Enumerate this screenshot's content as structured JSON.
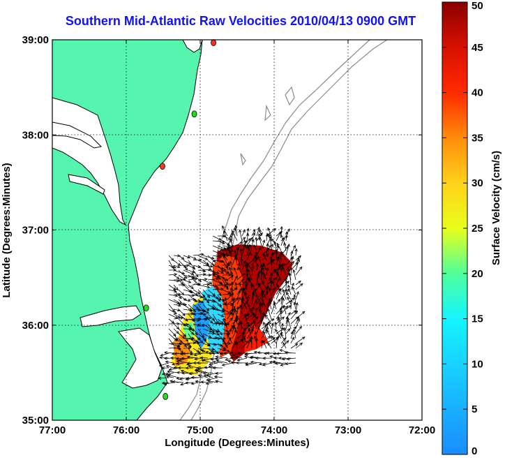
{
  "title": "Southern Mid-Atlantic Raw Velocities 2010/04/13 0900 GMT",
  "chart_data": {
    "type": "map",
    "xlabel": "Longitude (Degrees:Minutes)",
    "ylabel": "Latitude (Degrees:Minutes)",
    "x_ticks": [
      "77:00",
      "76:00",
      "75:00",
      "74:00",
      "73:00",
      "72:00"
    ],
    "x_tick_values": [
      -77,
      -76,
      -75,
      -74,
      -73,
      -72
    ],
    "y_ticks": [
      "39:00",
      "38:00",
      "37:00",
      "36:00",
      "35:00"
    ],
    "y_tick_values": [
      39,
      38,
      37,
      36,
      35
    ],
    "xlim": [
      -77,
      -72
    ],
    "ylim": [
      35,
      39
    ],
    "grid": true,
    "colorbar": {
      "label": "Surface Velocity (cm/s)",
      "range": [
        0,
        50
      ],
      "ticks": [
        "0",
        "5",
        "10",
        "15",
        "20",
        "25",
        "30",
        "35",
        "40",
        "45",
        "50"
      ],
      "tick_values": [
        0,
        5,
        10,
        15,
        20,
        25,
        30,
        35,
        40,
        45,
        50
      ]
    },
    "land_color": "#55f5b0",
    "coast_color": "#000000",
    "bathymetry_color": "#8a8a8a",
    "stations": [
      {
        "lon": -74.82,
        "lat": 38.97,
        "color": "#ff2a2a"
      },
      {
        "lon": -75.08,
        "lat": 38.22,
        "color": "#22dd22"
      },
      {
        "lon": -75.51,
        "lat": 37.67,
        "color": "#ff3a1a"
      },
      {
        "lon": -75.73,
        "lat": 36.18,
        "color": "#22dd22"
      },
      {
        "lon": -75.47,
        "lat": 35.25,
        "color": "#22dd22"
      }
    ]
  }
}
